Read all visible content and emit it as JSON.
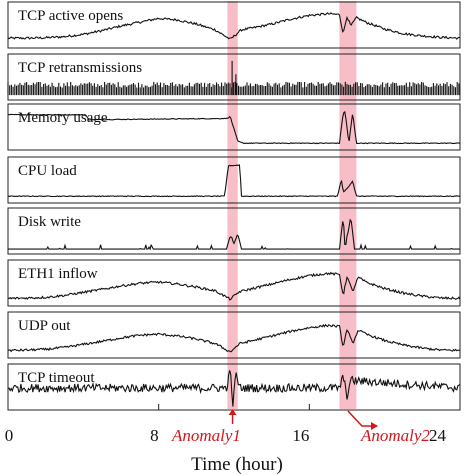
{
  "chart_data": {
    "type": "line",
    "xlabel": "Time (hour)",
    "xlim": [
      0,
      24
    ],
    "x_ticks": [
      "0",
      "8",
      "16",
      "24"
    ],
    "tick_values": [
      0,
      8,
      16,
      24
    ],
    "anomalies": [
      {
        "label": "Anomaly1",
        "start": 11.65,
        "end": 12.2
      },
      {
        "label": "Anomaly2",
        "start": 17.6,
        "end": 18.5
      }
    ],
    "series": [
      {
        "name": "TCP active opens",
        "x": [
          0,
          1,
          2,
          3,
          4,
          5,
          6,
          7,
          8,
          9,
          10,
          11,
          11.8,
          12.4,
          13,
          14,
          15,
          16,
          17,
          17.6,
          17.8,
          18,
          18.2,
          18.5,
          19,
          20,
          21,
          22,
          23,
          24
        ],
        "values": [
          0.18,
          0.18,
          0.19,
          0.22,
          0.28,
          0.38,
          0.5,
          0.6,
          0.7,
          0.66,
          0.55,
          0.4,
          0.15,
          0.4,
          0.45,
          0.55,
          0.68,
          0.78,
          0.82,
          0.8,
          0.3,
          0.75,
          0.5,
          0.72,
          0.6,
          0.42,
          0.3,
          0.24,
          0.2,
          0.18
        ]
      },
      {
        "name": "TCP retransmissions",
        "x": [
          0,
          11.7,
          11.9,
          12.1,
          12.3,
          24
        ],
        "values": [
          0.1,
          0.1,
          0.95,
          0.6,
          0.1,
          0.1
        ]
      },
      {
        "name": "Memory usage",
        "x": [
          0,
          4.1,
          4.3,
          11.6,
          11.8,
          12.2,
          12.5,
          17.5,
          17.6,
          17.8,
          17.9,
          18.1,
          18.3,
          18.5,
          24
        ],
        "values": [
          0.85,
          0.85,
          0.72,
          0.75,
          0.8,
          0.15,
          0.1,
          0.1,
          0.1,
          0.9,
          0.92,
          0.1,
          0.9,
          0.1,
          0.1
        ]
      },
      {
        "name": "CPU load",
        "x": [
          0,
          11.5,
          11.7,
          12.3,
          12.4,
          17.5,
          17.7,
          17.8,
          18.0,
          18.3,
          18.5,
          24
        ],
        "values": [
          0.1,
          0.1,
          0.9,
          0.92,
          0.1,
          0.1,
          0.55,
          0.2,
          0.3,
          0.5,
          0.1,
          0.1
        ]
      },
      {
        "name": "Disk write",
        "x": [
          0,
          11.6,
          11.8,
          12.0,
          12.2,
          12.4,
          17.6,
          17.8,
          17.9,
          18.2,
          18.4,
          18.6,
          24
        ],
        "values": [
          0.05,
          0.05,
          0.4,
          0.2,
          0.45,
          0.05,
          0.05,
          0.9,
          0.05,
          0.9,
          0.05,
          0.05,
          0.05
        ]
      },
      {
        "name": "ETH1 inflow",
        "x": [
          0,
          1,
          2,
          3,
          4,
          5,
          6,
          7,
          8,
          9,
          10,
          11,
          11.8,
          12.3,
          13,
          14,
          15,
          16,
          17,
          17.6,
          17.8,
          18.0,
          18.3,
          18.6,
          19,
          20,
          21,
          22,
          23,
          24
        ],
        "values": [
          0.12,
          0.13,
          0.15,
          0.2,
          0.28,
          0.36,
          0.45,
          0.52,
          0.55,
          0.5,
          0.42,
          0.32,
          0.1,
          0.3,
          0.38,
          0.5,
          0.62,
          0.72,
          0.78,
          0.75,
          0.2,
          0.7,
          0.3,
          0.68,
          0.55,
          0.38,
          0.26,
          0.18,
          0.13,
          0.12
        ]
      },
      {
        "name": "UDP out",
        "x": [
          0,
          1,
          2,
          3,
          4,
          5,
          6,
          7,
          8,
          9,
          10,
          11,
          11.8,
          12.3,
          13,
          14,
          15,
          16,
          17,
          17.6,
          17.8,
          18.0,
          18.3,
          18.6,
          19,
          20,
          21,
          22,
          23,
          24
        ],
        "values": [
          0.12,
          0.13,
          0.15,
          0.2,
          0.28,
          0.36,
          0.45,
          0.52,
          0.55,
          0.5,
          0.42,
          0.3,
          0.08,
          0.3,
          0.38,
          0.5,
          0.62,
          0.72,
          0.78,
          0.75,
          0.2,
          0.68,
          0.3,
          0.66,
          0.55,
          0.38,
          0.26,
          0.18,
          0.13,
          0.12
        ]
      },
      {
        "name": "TCP timeout",
        "x": [
          0,
          11.6,
          11.8,
          11.95,
          12.1,
          12.3,
          17.6,
          17.8,
          18.0,
          18.2,
          24
        ],
        "values": [
          0.5,
          0.5,
          0.95,
          0.05,
          0.9,
          0.5,
          0.5,
          0.8,
          0.3,
          0.7,
          0.5
        ]
      }
    ]
  }
}
